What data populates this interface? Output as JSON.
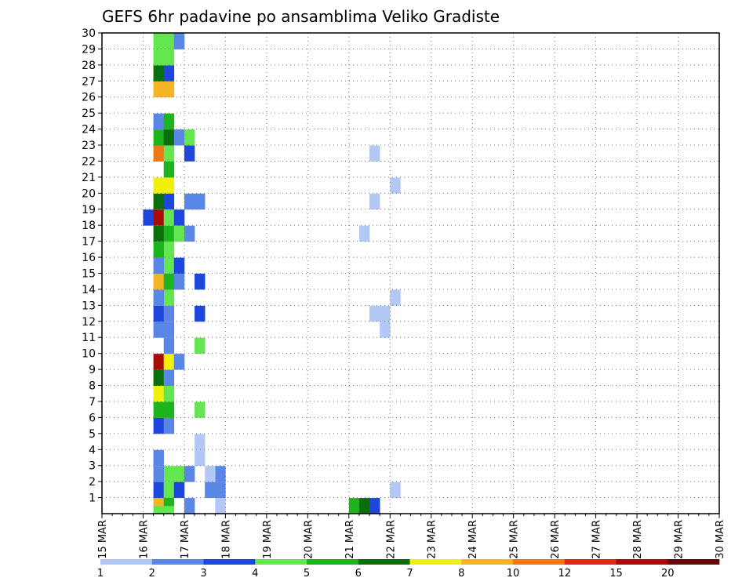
{
  "chart_data": {
    "type": "heatmap",
    "title": "GEFS 6hr padavine po ansamblima Veliko Gradiste",
    "xlabel": "",
    "ylabel": "",
    "x_ticks": [
      "15 MAR",
      "16 MAR",
      "17 MAR",
      "18 MAR",
      "19 MAR",
      "20 MAR",
      "21 MAR",
      "22 MAR",
      "23 MAR",
      "24 MAR",
      "25 MAR",
      "26 MAR",
      "27 MAR",
      "28 MAR",
      "29 MAR",
      "30 MAR"
    ],
    "xlim": [
      0,
      60
    ],
    "ylim": [
      0,
      30
    ],
    "y_ticks": [
      1,
      2,
      3,
      4,
      5,
      6,
      7,
      8,
      9,
      10,
      11,
      12,
      13,
      14,
      15,
      16,
      17,
      18,
      19,
      20,
      21,
      22,
      23,
      24,
      25,
      26,
      27,
      28,
      29,
      30
    ],
    "x_unit": "6-hour steps from 15 MAR 00Z",
    "y_unit": "ensemble member",
    "grid": true,
    "legend": {
      "position": "bottom",
      "labels": [
        "1",
        "2",
        "3",
        "4",
        "5",
        "6",
        "7",
        "8",
        "10",
        "12",
        "15",
        "20"
      ],
      "colors": [
        "#b4c8f5",
        "#5a87e6",
        "#1e46dc",
        "#64e650",
        "#1eb41e",
        "#0a6e0a",
        "#f0f00a",
        "#f5b428",
        "#f07814",
        "#dc2814",
        "#aa0a0a",
        "#640a0a"
      ]
    },
    "cell_colors": [
      "#b4c8f5",
      "#5a87e6",
      "#1e46dc",
      "#64e650",
      "#1eb41e",
      "#0a6e0a",
      "#f0f00a",
      "#f5b428",
      "#f07814",
      "#dc2814",
      "#aa0a0a",
      "#640a0a"
    ],
    "cells": [
      [
        5,
        0,
        3
      ],
      [
        6,
        0,
        3
      ],
      [
        8,
        0,
        1
      ],
      [
        5,
        0.5,
        7
      ],
      [
        6,
        0.5,
        4
      ],
      [
        5,
        1,
        2
      ],
      [
        6,
        1,
        3
      ],
      [
        7,
        1,
        2
      ],
      [
        10,
        1,
        1
      ],
      [
        11,
        1,
        1
      ],
      [
        6,
        2,
        3
      ],
      [
        7,
        2,
        3
      ],
      [
        5,
        2,
        1
      ],
      [
        8,
        2,
        1
      ],
      [
        11,
        2,
        1
      ],
      [
        5,
        3,
        1
      ],
      [
        5,
        5,
        2
      ],
      [
        6,
        5,
        1
      ],
      [
        5,
        6,
        4
      ],
      [
        6,
        6,
        4
      ],
      [
        9,
        6,
        3
      ],
      [
        5,
        7,
        6
      ],
      [
        6,
        7,
        3
      ],
      [
        5,
        8,
        5
      ],
      [
        6,
        8,
        1
      ],
      [
        5,
        9,
        10
      ],
      [
        6,
        9,
        6
      ],
      [
        7,
        9,
        1
      ],
      [
        6,
        10,
        1
      ],
      [
        9,
        10,
        3
      ],
      [
        5,
        11,
        1
      ],
      [
        6,
        11,
        1
      ],
      [
        5,
        12,
        2
      ],
      [
        6,
        12,
        1
      ],
      [
        9,
        12,
        2
      ],
      [
        6,
        13,
        3
      ],
      [
        5,
        13,
        1
      ],
      [
        5,
        14,
        7
      ],
      [
        6,
        14,
        4
      ],
      [
        7,
        14,
        1
      ],
      [
        9,
        14,
        2
      ],
      [
        6,
        15,
        3
      ],
      [
        7,
        15,
        2
      ],
      [
        5,
        15,
        1
      ],
      [
        6,
        16,
        3
      ],
      [
        5,
        16,
        4
      ],
      [
        5,
        17,
        5
      ],
      [
        6,
        17,
        4
      ],
      [
        7,
        17,
        3
      ],
      [
        8,
        17,
        1
      ],
      [
        4,
        18,
        2
      ],
      [
        5,
        18,
        10
      ],
      [
        6,
        18,
        3
      ],
      [
        7,
        18,
        2
      ],
      [
        5,
        19,
        5
      ],
      [
        6,
        19,
        2
      ],
      [
        8,
        19,
        1
      ],
      [
        9,
        19,
        1
      ],
      [
        5,
        20,
        6
      ],
      [
        6,
        20,
        6
      ],
      [
        6,
        21,
        4
      ],
      [
        5,
        22,
        8
      ],
      [
        6,
        22,
        3
      ],
      [
        8,
        22,
        2
      ],
      [
        5,
        23,
        4
      ],
      [
        6,
        23,
        5
      ],
      [
        7,
        23,
        1
      ],
      [
        8,
        23,
        3
      ],
      [
        5,
        24,
        1
      ],
      [
        6,
        24,
        4
      ],
      [
        5,
        26,
        7
      ],
      [
        6,
        26,
        7
      ],
      [
        5,
        27,
        5
      ],
      [
        6,
        27,
        2
      ],
      [
        5,
        28,
        3
      ],
      [
        6,
        28,
        3
      ],
      [
        5,
        29,
        3
      ],
      [
        6,
        29,
        3
      ],
      [
        7,
        29,
        1
      ],
      [
        24,
        0,
        4
      ],
      [
        25,
        0,
        5
      ],
      [
        26,
        0,
        2
      ],
      [
        11,
        0,
        0
      ],
      [
        10,
        2,
        0
      ],
      [
        9,
        3,
        0
      ],
      [
        9,
        4,
        0
      ],
      [
        28,
        1,
        0
      ],
      [
        27,
        12,
        0
      ],
      [
        26,
        12,
        0
      ],
      [
        27,
        11,
        0
      ],
      [
        28,
        13,
        0
      ],
      [
        25,
        17,
        0
      ],
      [
        26,
        19,
        0
      ],
      [
        28,
        20,
        0
      ],
      [
        26,
        22,
        0
      ]
    ]
  }
}
